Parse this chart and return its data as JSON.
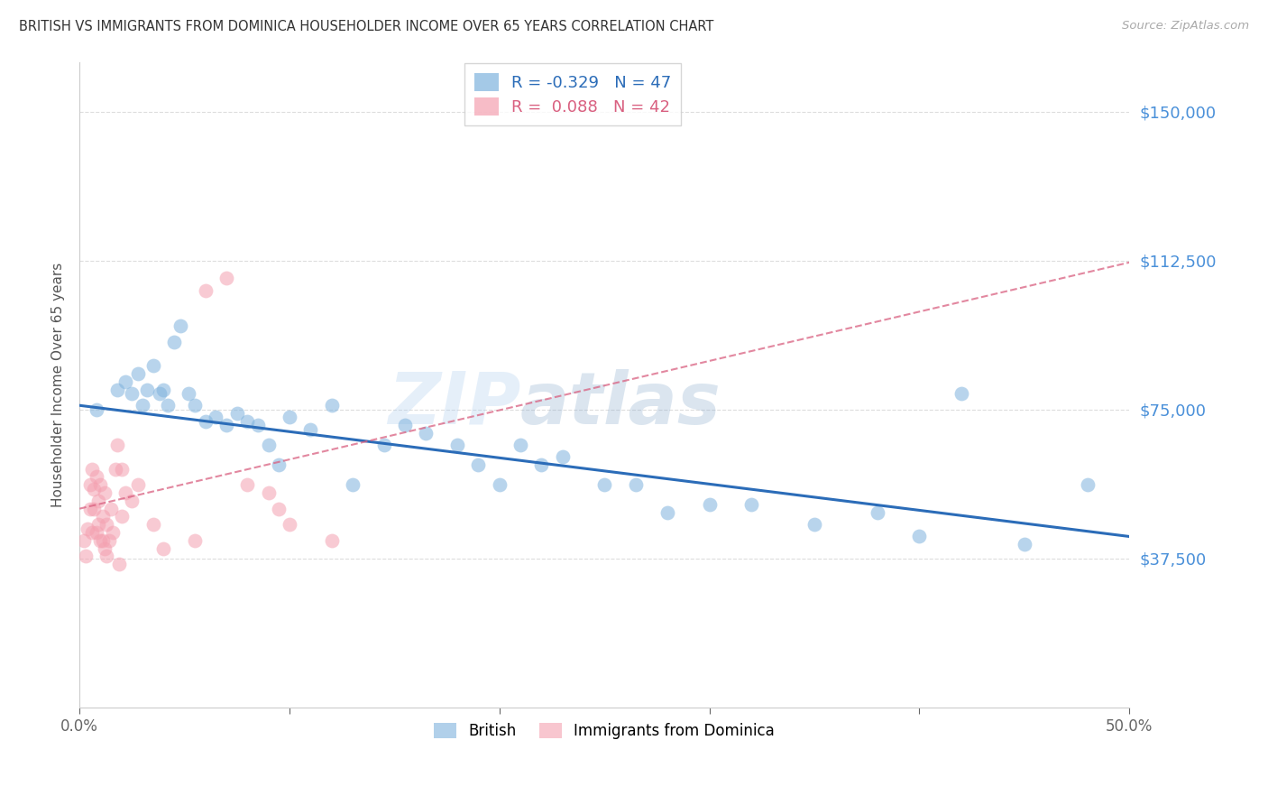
{
  "title": "BRITISH VS IMMIGRANTS FROM DOMINICA HOUSEHOLDER INCOME OVER 65 YEARS CORRELATION CHART",
  "source": "Source: ZipAtlas.com",
  "ylabel": "Householder Income Over 65 years",
  "xlim": [
    0.0,
    0.5
  ],
  "ylim": [
    0,
    162500
  ],
  "yticks": [
    37500,
    75000,
    112500,
    150000
  ],
  "ytick_labels": [
    "$37,500",
    "$75,000",
    "$112,500",
    "$150,000"
  ],
  "xticks": [
    0.0,
    0.1,
    0.2,
    0.3,
    0.4,
    0.5
  ],
  "xtick_labels": [
    "0.0%",
    "",
    "",
    "",
    "",
    "50.0%"
  ],
  "legend1_label": "British",
  "legend2_label": "Immigrants from Dominica",
  "r_british": -0.329,
  "n_british": 47,
  "r_dominica": 0.088,
  "n_dominica": 42,
  "blue_color": "#7EB2DD",
  "pink_color": "#F4A0B0",
  "blue_line_color": "#2B6CB8",
  "pink_line_color": "#D96080",
  "grid_color": "#DDDDDD",
  "right_tick_color": "#4A90D9",
  "british_x": [
    0.008,
    0.018,
    0.022,
    0.025,
    0.028,
    0.03,
    0.032,
    0.035,
    0.038,
    0.04,
    0.042,
    0.045,
    0.048,
    0.052,
    0.055,
    0.06,
    0.065,
    0.07,
    0.075,
    0.08,
    0.085,
    0.09,
    0.095,
    0.1,
    0.11,
    0.12,
    0.13,
    0.145,
    0.155,
    0.165,
    0.18,
    0.19,
    0.2,
    0.21,
    0.22,
    0.23,
    0.25,
    0.265,
    0.28,
    0.3,
    0.32,
    0.35,
    0.38,
    0.4,
    0.42,
    0.45,
    0.48
  ],
  "british_y": [
    75000,
    80000,
    82000,
    79000,
    84000,
    76000,
    80000,
    86000,
    79000,
    80000,
    76000,
    92000,
    96000,
    79000,
    76000,
    72000,
    73000,
    71000,
    74000,
    72000,
    71000,
    66000,
    61000,
    73000,
    70000,
    76000,
    56000,
    66000,
    71000,
    69000,
    66000,
    61000,
    56000,
    66000,
    61000,
    63000,
    56000,
    56000,
    49000,
    51000,
    51000,
    46000,
    49000,
    43000,
    79000,
    41000,
    56000
  ],
  "dominica_x": [
    0.002,
    0.003,
    0.004,
    0.005,
    0.005,
    0.006,
    0.006,
    0.007,
    0.007,
    0.008,
    0.008,
    0.009,
    0.009,
    0.01,
    0.01,
    0.011,
    0.011,
    0.012,
    0.012,
    0.013,
    0.013,
    0.014,
    0.015,
    0.016,
    0.017,
    0.018,
    0.019,
    0.02,
    0.02,
    0.022,
    0.025,
    0.028,
    0.035,
    0.04,
    0.055,
    0.06,
    0.07,
    0.08,
    0.09,
    0.095,
    0.1,
    0.12
  ],
  "dominica_y": [
    42000,
    38000,
    45000,
    50000,
    56000,
    60000,
    44000,
    50000,
    55000,
    58000,
    44000,
    46000,
    52000,
    42000,
    56000,
    48000,
    42000,
    40000,
    54000,
    38000,
    46000,
    42000,
    50000,
    44000,
    60000,
    66000,
    36000,
    60000,
    48000,
    54000,
    52000,
    56000,
    46000,
    40000,
    42000,
    105000,
    108000,
    56000,
    54000,
    50000,
    46000,
    42000
  ],
  "watermark_zip": "ZIP",
  "watermark_atlas": "atlas",
  "figsize": [
    14.06,
    8.92
  ],
  "dpi": 100
}
